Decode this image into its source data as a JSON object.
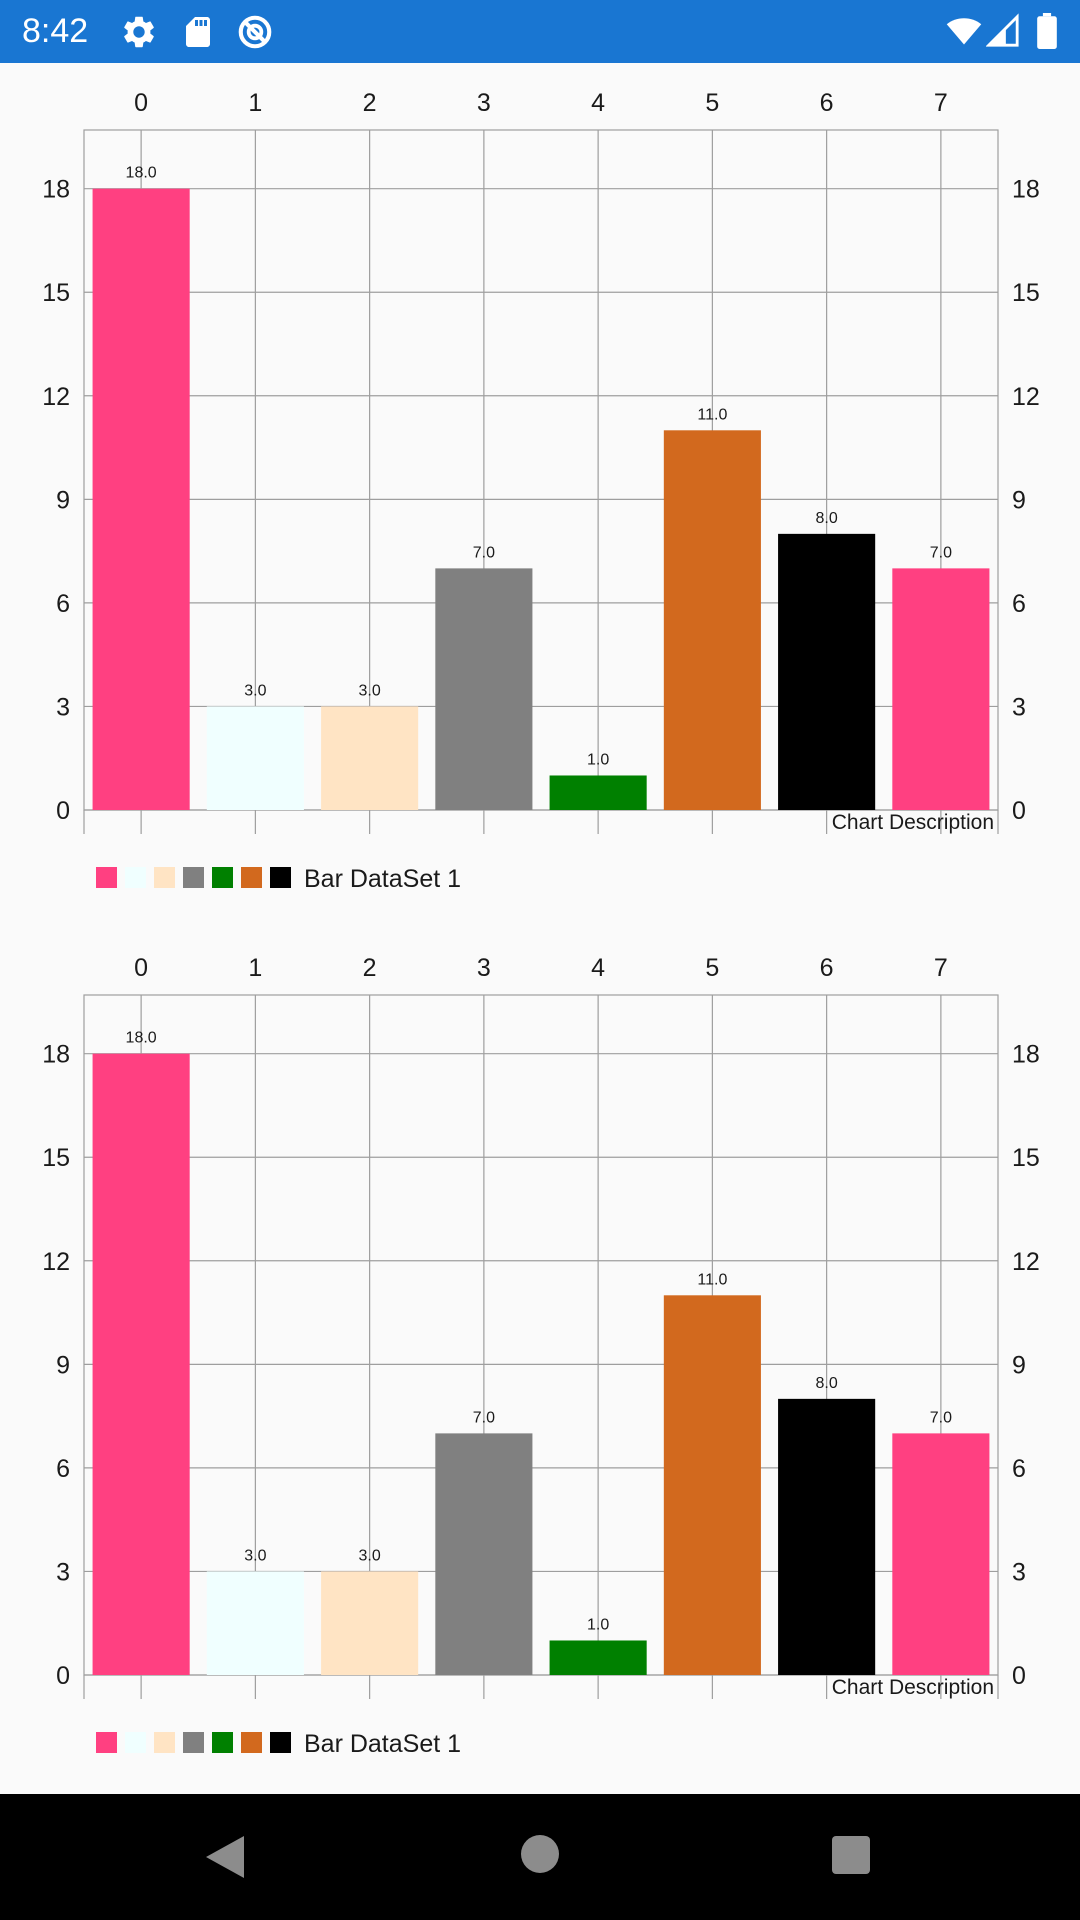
{
  "status_bar": {
    "time": "8:42",
    "left_icons": [
      "gear-icon",
      "sd-card-icon",
      "no-disturb-icon"
    ],
    "right_icons": [
      "wifi-icon",
      "signal-icon",
      "battery-icon"
    ],
    "background": "#1976d2"
  },
  "chart_data": [
    {
      "type": "bar",
      "categories": [
        "0",
        "1",
        "2",
        "3",
        "4",
        "5",
        "6",
        "7"
      ],
      "values": [
        18.0,
        3.0,
        3.0,
        7.0,
        1.0,
        11.0,
        8.0,
        7.0
      ],
      "value_labels": [
        "18.0",
        "3.0",
        "3.0",
        "7.0",
        "1.0",
        "11.0",
        "8.0",
        "7.0"
      ],
      "colors": [
        "#ff4081",
        "#f0ffff",
        "#ffe4c4",
        "#808080",
        "#008000",
        "#d2691e",
        "#000000",
        "#ff4081"
      ],
      "yticks": [
        0,
        3,
        6,
        9,
        12,
        15,
        18
      ],
      "ylim": [
        0,
        19.7
      ],
      "xaxis_position": "top",
      "yaxis_left": true,
      "yaxis_right": true,
      "grid": true,
      "description": "Chart Description",
      "legend": {
        "label": "Bar DataSet 1",
        "placement": "bottom-left"
      }
    },
    {
      "type": "bar",
      "categories": [
        "0",
        "1",
        "2",
        "3",
        "4",
        "5",
        "6",
        "7"
      ],
      "values": [
        18.0,
        3.0,
        3.0,
        7.0,
        1.0,
        11.0,
        8.0,
        7.0
      ],
      "value_labels": [
        "18.0",
        "3.0",
        "3.0",
        "7.0",
        "1.0",
        "11.0",
        "8.0",
        "7.0"
      ],
      "colors": [
        "#ff4081",
        "#f0ffff",
        "#ffe4c4",
        "#808080",
        "#008000",
        "#d2691e",
        "#000000",
        "#ff4081"
      ],
      "yticks": [
        0,
        3,
        6,
        9,
        12,
        15,
        18
      ],
      "ylim": [
        0,
        19.7
      ],
      "xaxis_position": "top",
      "yaxis_left": true,
      "yaxis_right": true,
      "grid": true,
      "description": "Chart Description",
      "legend": {
        "label": "Bar DataSet 1",
        "placement": "bottom-left"
      }
    }
  ],
  "nav_bar": {
    "buttons": [
      "back-icon",
      "home-icon",
      "recents-icon"
    ]
  }
}
